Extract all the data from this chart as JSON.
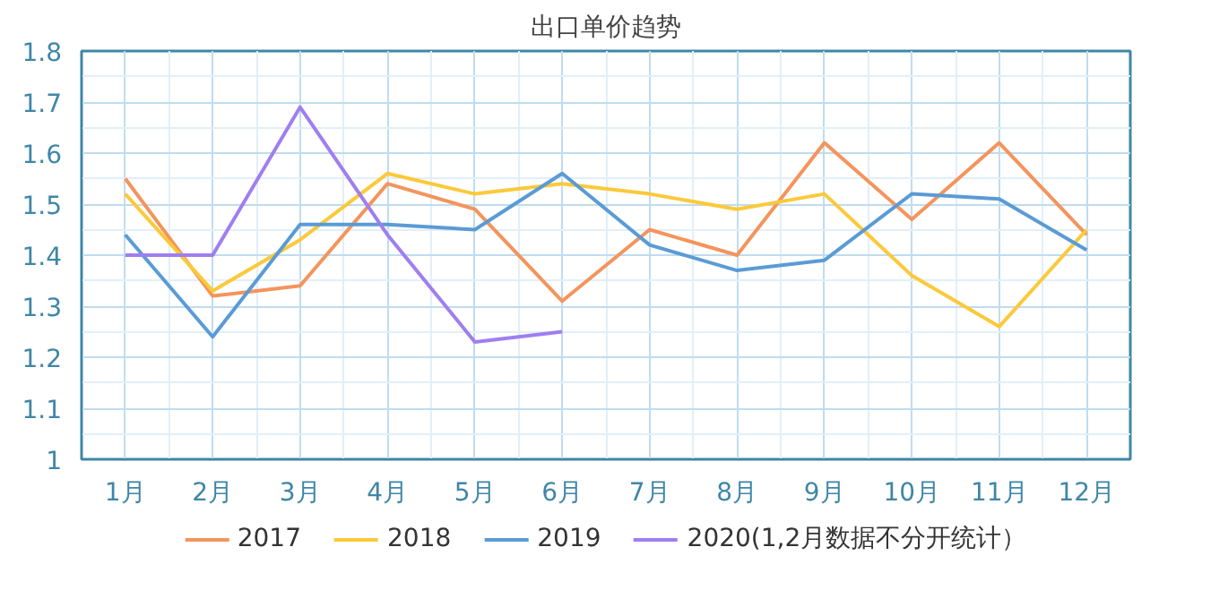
{
  "chart_data": {
    "type": "line",
    "title": "出口单价趋势",
    "categories": [
      "1月",
      "2月",
      "3月",
      "4月",
      "5月",
      "6月",
      "7月",
      "8月",
      "9月",
      "10月",
      "11月",
      "12月"
    ],
    "series": [
      {
        "name": "2017",
        "color": "#f4945c",
        "values": [
          1.55,
          1.32,
          1.34,
          1.54,
          1.49,
          1.31,
          1.45,
          1.4,
          1.62,
          1.47,
          1.62,
          1.44
        ]
      },
      {
        "name": "2018",
        "color": "#fbc93a",
        "values": [
          1.52,
          1.33,
          1.43,
          1.56,
          1.52,
          1.54,
          1.52,
          1.49,
          1.52,
          1.36,
          1.26,
          1.45
        ]
      },
      {
        "name": "2019",
        "color": "#5a9bd5",
        "values": [
          1.44,
          1.24,
          1.46,
          1.46,
          1.45,
          1.56,
          1.42,
          1.37,
          1.39,
          1.52,
          1.51,
          1.41
        ]
      },
      {
        "name": "2020(1,2月数据不分开统计）",
        "color": "#9f7ef0",
        "values": [
          1.4,
          1.4,
          1.69,
          1.44,
          1.23,
          1.25,
          null,
          null,
          null,
          null,
          null,
          null
        ]
      }
    ],
    "ylim": [
      1,
      1.8
    ],
    "yticks": [
      1,
      1.1,
      1.2,
      1.3,
      1.4,
      1.5,
      1.6,
      1.7,
      1.8
    ],
    "grid": true,
    "legend": "bottom",
    "marker": "none",
    "line_style": "solid"
  }
}
